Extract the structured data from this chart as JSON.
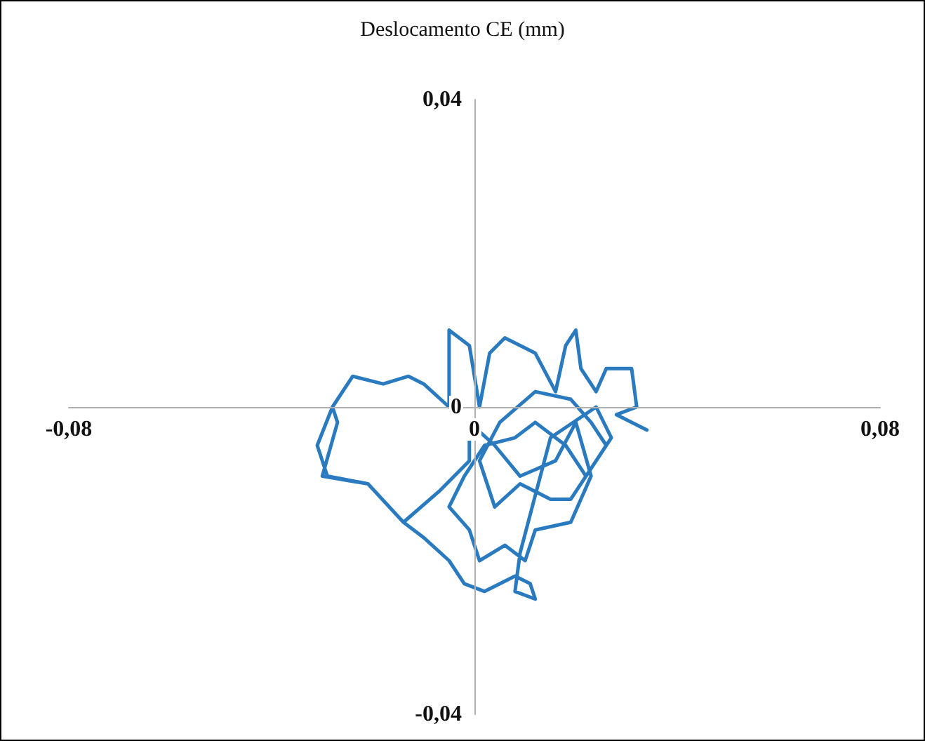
{
  "chart_data": {
    "type": "line",
    "title": "Deslocamento CE (mm)",
    "grid": false,
    "marker": "none",
    "line_style": "solid",
    "xlim": [
      -0.08,
      0.08
    ],
    "xticks": [
      {
        "value": -0.08,
        "label": "-0,08"
      },
      0,
      {
        "value": 0.08,
        "label": "0,08"
      }
    ],
    "ylim": [
      -0.04,
      0.04
    ],
    "yticks": [
      {
        "value": -0.04,
        "label": "-0,04"
      },
      0,
      {
        "value": 0.04,
        "label": "0,04"
      }
    ],
    "series": [
      {
        "color": "#2a7abf",
        "x": [
          0.034,
          0.028,
          0.032,
          0.031,
          0.026,
          0.024,
          0.021,
          0.02,
          0.018,
          0.016,
          0.012,
          0.006,
          0.003,
          0.001,
          -0.001,
          -0.005,
          -0.005,
          -0.01,
          -0.013,
          -0.018,
          -0.024,
          -0.028,
          -0.027,
          -0.03,
          -0.021,
          -0.014,
          -0.007,
          -0.001,
          -0.001,
          0.004,
          0.009,
          0.016,
          0.02,
          0.023,
          0.019,
          0.012,
          0.01,
          0.006,
          0.001,
          -0.001,
          -0.005,
          -0.002,
          0.002,
          0.008,
          0.012,
          0.018,
          0.022,
          0.026,
          0.023,
          0.019,
          0.012,
          0.005,
          0.001,
          0.004,
          0.009,
          0.015,
          0.019,
          0.024,
          0.027,
          0.024,
          0.015,
          0.009,
          0.008,
          0.012,
          0.011,
          0.008,
          0.002,
          -0.002,
          -0.005,
          -0.01,
          -0.014,
          -0.021,
          -0.029,
          -0.031,
          -0.028
        ],
        "values": [
          -0.003,
          -0.001,
          0,
          0.005,
          0.005,
          0.002,
          0.005,
          0.01,
          0.008,
          0.002,
          0.007,
          0.009,
          0.007,
          0,
          0.008,
          0.01,
          0,
          0.003,
          0.004,
          0.003,
          0.004,
          0,
          -0.002,
          -0.009,
          -0.01,
          -0.015,
          -0.011,
          -0.007,
          -0.002,
          -0.005,
          -0.009,
          -0.007,
          -0.002,
          -0.009,
          -0.015,
          -0.016,
          -0.02,
          -0.018,
          -0.02,
          -0.016,
          -0.013,
          -0.009,
          -0.005,
          -0.004,
          -0.002,
          -0.005,
          -0.009,
          -0.005,
          -0.002,
          0.001,
          0.002,
          -0.002,
          -0.007,
          -0.013,
          -0.01,
          -0.012,
          -0.012,
          -0.007,
          -0.004,
          0,
          -0.004,
          -0.019,
          -0.024,
          -0.025,
          -0.023,
          -0.022,
          -0.024,
          -0.023,
          -0.02,
          -0.017,
          -0.015,
          -0.01,
          -0.009,
          -0.005,
          0
        ]
      }
    ]
  }
}
